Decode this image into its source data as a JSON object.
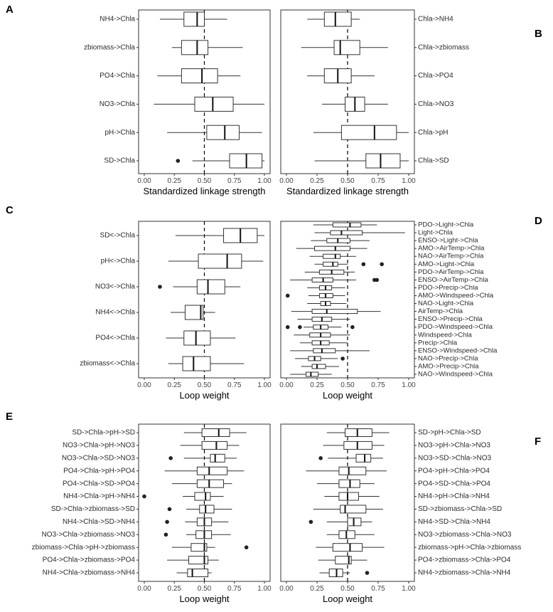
{
  "chart_data": [
    {
      "panel": "A",
      "type": "box",
      "label_side": "left",
      "xlabel": "Standardized linkage strength",
      "xlim": [
        0,
        1
      ],
      "xticks": [
        0.0,
        0.25,
        0.5,
        0.75,
        1.0
      ],
      "xtick_labels": [
        "0.00",
        "0.25",
        "0.50",
        "0.75",
        "1.00"
      ],
      "reference_line": 0.5,
      "categories": [
        "NH4->Chla",
        "zbiomass->Chla",
        "PO4->Chla",
        "NO3->Chla",
        "pH->Chla",
        "SD->Chla"
      ],
      "boxes": [
        {
          "min": 0.13,
          "q1": 0.33,
          "median": 0.44,
          "q3": 0.5,
          "max": 0.69,
          "outliers": []
        },
        {
          "min": 0.23,
          "q1": 0.31,
          "median": 0.44,
          "q3": 0.53,
          "max": 0.82,
          "outliers": []
        },
        {
          "min": 0.11,
          "q1": 0.31,
          "median": 0.48,
          "q3": 0.61,
          "max": 0.8,
          "outliers": []
        },
        {
          "min": 0.08,
          "q1": 0.42,
          "median": 0.57,
          "q3": 0.74,
          "max": 1.0,
          "outliers": []
        },
        {
          "min": 0.19,
          "q1": 0.52,
          "median": 0.67,
          "q3": 0.79,
          "max": 0.98,
          "outliers": []
        },
        {
          "min": 0.4,
          "q1": 0.71,
          "median": 0.85,
          "q3": 0.98,
          "max": 1.0,
          "outliers": [
            0.28
          ]
        }
      ]
    },
    {
      "panel": "B",
      "type": "box",
      "label_side": "right",
      "xlabel": "Standardized linkage strength",
      "xlim": [
        0,
        1
      ],
      "xticks": [
        0.0,
        0.25,
        0.5,
        0.75,
        1.0
      ],
      "xtick_labels": [
        "0.00",
        "0.25",
        "0.50",
        "0.75",
        "1.00"
      ],
      "reference_line": 0.5,
      "categories": [
        "Chla->NH4",
        "Chla->zbiomass",
        "Chla->PO4",
        "Chla->NO3",
        "Chla->pH",
        "Chla->SD"
      ],
      "boxes": [
        {
          "min": 0.17,
          "q1": 0.31,
          "median": 0.4,
          "q3": 0.53,
          "max": 0.6,
          "outliers": []
        },
        {
          "min": 0.12,
          "q1": 0.39,
          "median": 0.44,
          "q3": 0.6,
          "max": 0.83,
          "outliers": []
        },
        {
          "min": 0.17,
          "q1": 0.31,
          "median": 0.42,
          "q3": 0.53,
          "max": 0.72,
          "outliers": []
        },
        {
          "min": 0.29,
          "q1": 0.48,
          "median": 0.56,
          "q3": 0.64,
          "max": 0.83,
          "outliers": []
        },
        {
          "min": 0.22,
          "q1": 0.45,
          "median": 0.72,
          "q3": 0.9,
          "max": 1.0,
          "outliers": []
        },
        {
          "min": 0.23,
          "q1": 0.65,
          "median": 0.77,
          "q3": 0.93,
          "max": 1.0,
          "outliers": []
        }
      ]
    },
    {
      "panel": "C",
      "type": "box",
      "label_side": "left",
      "xlabel": "Loop weight",
      "xlim": [
        0,
        1
      ],
      "xticks": [
        0.0,
        0.25,
        0.5,
        0.75,
        1.0
      ],
      "xtick_labels": [
        "0.00",
        "0.25",
        "0.50",
        "0.75",
        "1.00"
      ],
      "reference_line": 0.5,
      "categories": [
        "SD<->Chla",
        "pH<->Chla",
        "NO3<->Chla",
        "NH4<->Chla",
        "PO4<->Chla",
        "zbiomass<->Chla"
      ],
      "boxes": [
        {
          "min": 0.26,
          "q1": 0.66,
          "median": 0.8,
          "q3": 0.94,
          "max": 1.0,
          "outliers": []
        },
        {
          "min": 0.2,
          "q1": 0.45,
          "median": 0.69,
          "q3": 0.81,
          "max": 0.99,
          "outliers": []
        },
        {
          "min": 0.24,
          "q1": 0.44,
          "median": 0.53,
          "q3": 0.67,
          "max": 0.8,
          "outliers": [
            0.13
          ]
        },
        {
          "min": 0.22,
          "q1": 0.34,
          "median": 0.47,
          "q3": 0.49,
          "max": 0.59,
          "outliers": []
        },
        {
          "min": 0.18,
          "q1": 0.33,
          "median": 0.43,
          "q3": 0.55,
          "max": 0.76,
          "outliers": []
        },
        {
          "min": 0.2,
          "q1": 0.32,
          "median": 0.41,
          "q3": 0.55,
          "max": 0.83,
          "outliers": []
        }
      ]
    },
    {
      "panel": "D",
      "type": "box",
      "label_side": "right",
      "xlabel": "Loop weight",
      "xlim": [
        0,
        1
      ],
      "xticks": [
        0.0,
        0.25,
        0.5,
        0.75,
        1.0
      ],
      "xtick_labels": [
        "0.00",
        "0.25",
        "0.50",
        "0.75",
        "1.00"
      ],
      "reference_line": 0.5,
      "categories": [
        "PDO->Light->Chla",
        "Light->Chla",
        "ENSO->Light->Chla",
        "AMO->AirTemp->Chla",
        "NAO->AirTemp->Chla",
        "AMO->Light->Chla",
        "PDO->AirTemp->Chla",
        "ENSO->AirTemp->Chla",
        "PDO->Precip->Chla",
        "AMO->Windspeed->Chla",
        "NAO->Light->Chla",
        "AirTemp->Chla",
        "ENSO->Precip->Chla",
        "PDO->Windspeed->Chla",
        "Windspeed->Chla",
        "Precip->Chla",
        "ENSO->Windspeed->Chla",
        "NAO->Precip->Chla",
        "AMO->Precip->Chla",
        "NAO->Windspeed->Chla"
      ],
      "boxes": [
        {
          "min": 0.22,
          "q1": 0.38,
          "median": 0.52,
          "q3": 0.61,
          "max": 0.74,
          "outliers": []
        },
        {
          "min": 0.23,
          "q1": 0.36,
          "median": 0.45,
          "q3": 0.62,
          "max": 0.97,
          "outliers": []
        },
        {
          "min": 0.2,
          "q1": 0.33,
          "median": 0.42,
          "q3": 0.52,
          "max": 0.68,
          "outliers": []
        },
        {
          "min": 0.08,
          "q1": 0.23,
          "median": 0.4,
          "q3": 0.52,
          "max": 0.66,
          "outliers": []
        },
        {
          "min": 0.19,
          "q1": 0.3,
          "median": 0.4,
          "q3": 0.44,
          "max": 0.57,
          "outliers": []
        },
        {
          "min": 0.23,
          "q1": 0.3,
          "median": 0.38,
          "q3": 0.42,
          "max": 0.5,
          "outliers": [
            0.63,
            0.78
          ]
        },
        {
          "min": 0.15,
          "q1": 0.27,
          "median": 0.37,
          "q3": 0.47,
          "max": 0.56,
          "outliers": []
        },
        {
          "min": 0.03,
          "q1": 0.21,
          "median": 0.3,
          "q3": 0.38,
          "max": 0.57,
          "outliers": [
            0.72,
            0.74
          ]
        },
        {
          "min": 0.17,
          "q1": 0.27,
          "median": 0.32,
          "q3": 0.37,
          "max": 0.48,
          "outliers": []
        },
        {
          "min": 0.18,
          "q1": 0.27,
          "median": 0.32,
          "q3": 0.38,
          "max": 0.48,
          "outliers": [
            0.01
          ]
        },
        {
          "min": 0.17,
          "q1": 0.28,
          "median": 0.32,
          "q3": 0.36,
          "max": 0.49,
          "outliers": []
        },
        {
          "min": 0.04,
          "q1": 0.21,
          "median": 0.33,
          "q3": 0.58,
          "max": 0.77,
          "outliers": []
        },
        {
          "min": 0.09,
          "q1": 0.21,
          "median": 0.29,
          "q3": 0.37,
          "max": 0.52,
          "outliers": []
        },
        {
          "min": 0.14,
          "q1": 0.22,
          "median": 0.28,
          "q3": 0.34,
          "max": 0.45,
          "outliers": [
            0.01,
            0.11,
            0.54
          ]
        },
        {
          "min": 0.06,
          "q1": 0.19,
          "median": 0.28,
          "q3": 0.36,
          "max": 0.52,
          "outliers": []
        },
        {
          "min": 0.11,
          "q1": 0.21,
          "median": 0.28,
          "q3": 0.35,
          "max": 0.5,
          "outliers": []
        },
        {
          "min": 0.03,
          "q1": 0.22,
          "median": 0.29,
          "q3": 0.4,
          "max": 0.68,
          "outliers": []
        },
        {
          "min": 0.07,
          "q1": 0.18,
          "median": 0.23,
          "q3": 0.28,
          "max": 0.42,
          "outliers": [
            0.46
          ]
        },
        {
          "min": 0.12,
          "q1": 0.21,
          "median": 0.25,
          "q3": 0.32,
          "max": 0.43,
          "outliers": []
        },
        {
          "min": 0.03,
          "q1": 0.16,
          "median": 0.2,
          "q3": 0.26,
          "max": 0.37,
          "outliers": []
        }
      ]
    },
    {
      "panel": "E",
      "type": "box",
      "label_side": "left",
      "xlabel": "Loop weight",
      "xlim": [
        0,
        1
      ],
      "xticks": [
        0.0,
        0.25,
        0.5,
        0.75,
        1.0
      ],
      "xtick_labels": [
        "0.00",
        "0.25",
        "0.50",
        "0.75",
        "1.00"
      ],
      "reference_line": 0.5,
      "categories": [
        "SD->Chla->pH->SD",
        "NO3->Chla->pH->NO3",
        "NO3->Chla->SD->NO3",
        "PO4->Chla->pH->PO4",
        "PO4->Chla->SD->PO4",
        "NH4->Chla->pH->NH4",
        "SD->Chla->zbiomass->SD",
        "NH4->Chla->SD->NH4",
        "NO3->Chla->zbiomass->NO3",
        "zbiomass->Chla->pH->zbiomass",
        "PO4->Chla->zbiomass->PO4",
        "NH4->Chla->zbiomass->NH4"
      ],
      "boxes": [
        {
          "min": 0.33,
          "q1": 0.48,
          "median": 0.62,
          "q3": 0.71,
          "max": 0.85,
          "outliers": []
        },
        {
          "min": 0.3,
          "q1": 0.48,
          "median": 0.6,
          "q3": 0.69,
          "max": 0.79,
          "outliers": []
        },
        {
          "min": 0.33,
          "q1": 0.55,
          "median": 0.59,
          "q3": 0.67,
          "max": 0.77,
          "outliers": [
            0.22
          ]
        },
        {
          "min": 0.17,
          "q1": 0.44,
          "median": 0.54,
          "q3": 0.69,
          "max": 0.83,
          "outliers": []
        },
        {
          "min": 0.23,
          "q1": 0.44,
          "median": 0.54,
          "q3": 0.66,
          "max": 0.73,
          "outliers": []
        },
        {
          "min": 0.32,
          "q1": 0.42,
          "median": 0.51,
          "q3": 0.55,
          "max": 0.66,
          "outliers": [
            0.0
          ]
        },
        {
          "min": 0.35,
          "q1": 0.46,
          "median": 0.51,
          "q3": 0.58,
          "max": 0.73,
          "outliers": [
            0.21
          ]
        },
        {
          "min": 0.34,
          "q1": 0.44,
          "median": 0.5,
          "q3": 0.56,
          "max": 0.7,
          "outliers": [
            0.19
          ]
        },
        {
          "min": 0.35,
          "q1": 0.43,
          "median": 0.5,
          "q3": 0.56,
          "max": 0.72,
          "outliers": [
            0.18
          ]
        },
        {
          "min": 0.23,
          "q1": 0.39,
          "median": 0.5,
          "q3": 0.52,
          "max": 0.59,
          "outliers": [
            0.85
          ]
        },
        {
          "min": 0.19,
          "q1": 0.37,
          "median": 0.5,
          "q3": 0.53,
          "max": 0.62,
          "outliers": []
        },
        {
          "min": 0.27,
          "q1": 0.36,
          "median": 0.4,
          "q3": 0.53,
          "max": 0.56,
          "outliers": []
        }
      ]
    },
    {
      "panel": "F",
      "type": "box",
      "label_side": "right",
      "xlabel": "Loop weight",
      "xlim": [
        0,
        1
      ],
      "xticks": [
        0.0,
        0.25,
        0.5,
        0.75,
        1.0
      ],
      "xtick_labels": [
        "0.00",
        "0.25",
        "0.50",
        "0.75",
        "1.00"
      ],
      "reference_line": 0.5,
      "categories": [
        "SD->pH->Chla->SD",
        "NO3->pH->Chla->NO3",
        "NO3->SD->Chla->NO3",
        "PO4->pH->Chla->PO4",
        "PO4->SD->Chla->PO4",
        "NH4->pH->Chla->NH4",
        "SD->zbiomass->Chla->SD",
        "NH4->SD->Chla->NH4",
        "NO3->zbiomass->Chla->NO3",
        "zbiomass->pH->Chla->zbiomass",
        "PO4->zbiomass->Chla->PO4",
        "NH4->zbiomass->Chla->NH4"
      ],
      "boxes": [
        {
          "min": 0.33,
          "q1": 0.48,
          "median": 0.58,
          "q3": 0.7,
          "max": 0.84,
          "outliers": []
        },
        {
          "min": 0.3,
          "q1": 0.47,
          "median": 0.58,
          "q3": 0.7,
          "max": 0.8,
          "outliers": []
        },
        {
          "min": 0.34,
          "q1": 0.57,
          "median": 0.64,
          "q3": 0.69,
          "max": 0.79,
          "outliers": [
            0.28
          ]
        },
        {
          "min": 0.16,
          "q1": 0.43,
          "median": 0.51,
          "q3": 0.65,
          "max": 0.82,
          "outliers": []
        },
        {
          "min": 0.25,
          "q1": 0.43,
          "median": 0.52,
          "q3": 0.6,
          "max": 0.72,
          "outliers": []
        },
        {
          "min": 0.31,
          "q1": 0.43,
          "median": 0.5,
          "q3": 0.59,
          "max": 0.76,
          "outliers": []
        },
        {
          "min": 0.22,
          "q1": 0.44,
          "median": 0.48,
          "q3": 0.65,
          "max": 0.79,
          "outliers": []
        },
        {
          "min": 0.33,
          "q1": 0.5,
          "median": 0.55,
          "q3": 0.61,
          "max": 0.7,
          "outliers": [
            0.2
          ]
        },
        {
          "min": 0.33,
          "q1": 0.43,
          "median": 0.49,
          "q3": 0.56,
          "max": 0.72,
          "outliers": []
        },
        {
          "min": 0.24,
          "q1": 0.38,
          "median": 0.52,
          "q3": 0.62,
          "max": 0.8,
          "outliers": []
        },
        {
          "min": 0.26,
          "q1": 0.4,
          "median": 0.51,
          "q3": 0.53,
          "max": 0.66,
          "outliers": []
        },
        {
          "min": 0.27,
          "q1": 0.35,
          "median": 0.41,
          "q3": 0.46,
          "max": 0.52,
          "outliers": [
            0.66
          ]
        }
      ]
    }
  ],
  "panel_labels": [
    "A",
    "B",
    "C",
    "D",
    "E",
    "F"
  ],
  "colors": {
    "box_fill": "#ffffff",
    "box_stroke": "#333333",
    "outlier": "#222222",
    "reference_line": "#000000",
    "panel_border": "#333333"
  }
}
